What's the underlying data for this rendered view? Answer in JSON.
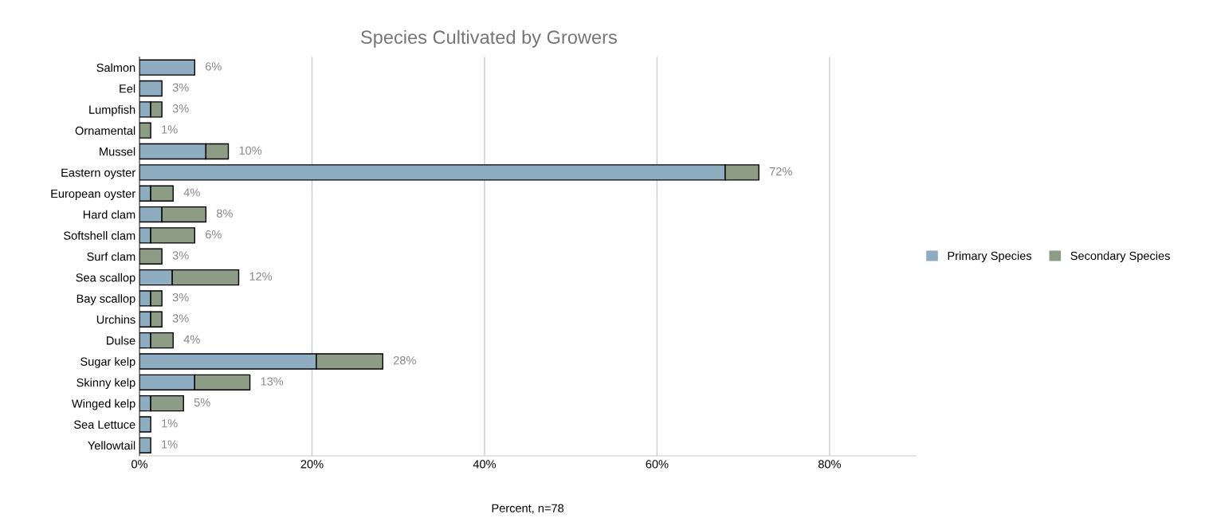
{
  "chart_data": {
    "type": "bar",
    "orientation": "horizontal",
    "stacked": true,
    "title": "Species Cultivated by Growers",
    "xlabel": "Percent, n=78",
    "categories": [
      "Salmon",
      "Eel",
      "Lumpfish",
      "Ornamental",
      "Mussel",
      "Eastern oyster",
      "European oyster",
      "Hard clam",
      "Softshell clam",
      "Surf clam",
      "Sea scallop",
      "Bay scallop",
      "Urchins",
      "Dulse",
      "Sugar kelp",
      "Skinny kelp",
      "Winged kelp",
      "Sea Lettuce",
      "Yellowtail"
    ],
    "series": [
      {
        "name": "Primary Species",
        "color": "#8eadc1",
        "values": [
          6.4,
          2.6,
          1.3,
          null,
          7.7,
          67.9,
          1.3,
          2.6,
          1.3,
          null,
          3.8,
          1.3,
          1.3,
          1.3,
          20.5,
          6.4,
          1.3,
          1.3,
          1.3
        ]
      },
      {
        "name": "Secondary Species",
        "color": "#8c9c85",
        "values": [
          null,
          null,
          1.3,
          1.3,
          2.6,
          3.9,
          2.6,
          5.1,
          5.1,
          2.6,
          7.7,
          1.3,
          1.3,
          2.6,
          7.7,
          6.4,
          3.8,
          null,
          null
        ]
      }
    ],
    "totals": [
      "6%",
      "3%",
      "3%",
      "1%",
      "10%",
      "72%",
      "4%",
      "8%",
      "6%",
      "3%",
      "12%",
      "3%",
      "3%",
      "4%",
      "28%",
      "13%",
      "5%",
      "1%",
      "1%"
    ],
    "xlim": [
      0,
      90
    ],
    "xticks": [
      {
        "value": 0,
        "label": "0%"
      },
      {
        "value": 20,
        "label": "20%"
      },
      {
        "value": 40,
        "label": "40%"
      },
      {
        "value": 60,
        "label": "60%"
      },
      {
        "value": 80,
        "label": "80%"
      }
    ],
    "grid": "x",
    "legend": "right"
  }
}
